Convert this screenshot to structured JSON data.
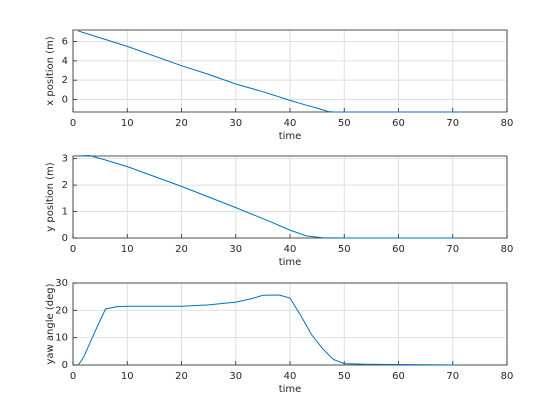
{
  "chart_data": [
    {
      "type": "line",
      "x_label": "time",
      "y_label": "x position (m)",
      "xlim": [
        0,
        80
      ],
      "xticks": [
        0,
        10,
        20,
        30,
        40,
        50,
        60,
        70,
        80
      ],
      "ylim": [
        -1.3,
        7.2
      ],
      "yticks": [
        0,
        2,
        4,
        6
      ],
      "grid": true,
      "series": [
        {
          "color": "#0072bd",
          "x": [
            1,
            10,
            20,
            25,
            30,
            35,
            40,
            43,
            45,
            47,
            48,
            71
          ],
          "values": [
            7.1,
            5.5,
            3.5,
            2.6,
            1.6,
            0.8,
            -0.1,
            -0.6,
            -0.9,
            -1.25,
            -1.3,
            -1.3
          ]
        }
      ]
    },
    {
      "type": "line",
      "x_label": "time",
      "y_label": "y position (m)",
      "xlim": [
        0,
        80
      ],
      "xticks": [
        0,
        10,
        20,
        30,
        40,
        50,
        60,
        70,
        80
      ],
      "ylim": [
        0,
        3.1
      ],
      "yticks": [
        0,
        1,
        2,
        3
      ],
      "grid": true,
      "series": [
        {
          "color": "#0072bd",
          "x": [
            1,
            3,
            6,
            10,
            20,
            30,
            36,
            40,
            43,
            46,
            50,
            71
          ],
          "values": [
            3.1,
            3.12,
            2.95,
            2.7,
            1.95,
            1.15,
            0.65,
            0.3,
            0.08,
            0.01,
            0,
            0
          ]
        }
      ]
    },
    {
      "type": "line",
      "x_label": "time",
      "y_label": "yaw angle (deg)",
      "xlim": [
        0,
        80
      ],
      "xticks": [
        0,
        10,
        20,
        30,
        40,
        50,
        60,
        70,
        80
      ],
      "ylim": [
        0,
        30
      ],
      "yticks": [
        0,
        10,
        20,
        30
      ],
      "grid": true,
      "series": [
        {
          "color": "#0072bd",
          "x": [
            1,
            2,
            4,
            6,
            8,
            10,
            20,
            25,
            30,
            33,
            35,
            38,
            40,
            42,
            44,
            46,
            48,
            50,
            54,
            71
          ],
          "values": [
            0,
            3,
            12,
            20.5,
            21.3,
            21.5,
            21.5,
            22,
            23,
            24.3,
            25.5,
            25.6,
            24.5,
            18,
            11,
            6,
            2,
            0.5,
            0.3,
            0
          ]
        }
      ]
    }
  ]
}
